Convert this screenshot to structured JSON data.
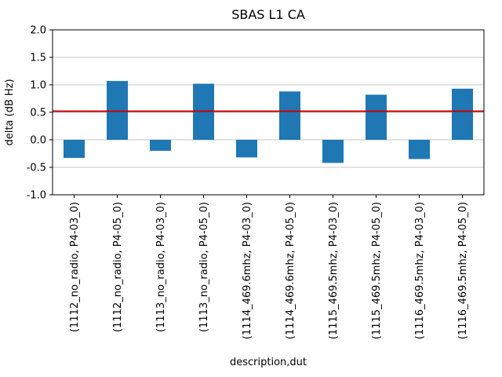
{
  "chart_data": {
    "type": "bar",
    "title": "SBAS L1 CA",
    "xlabel": "description,dut",
    "ylabel": "delta (dB Hz)",
    "categories": [
      "(1112_no_radio, P4-03_0)",
      "(1112_no_radio, P4-05_0)",
      "(1113_no_radio, P4-03_0)",
      "(1113_no_radio, P4-05_0)",
      "(1114_469.6mhz, P4-03_0)",
      "(1114_469.6mhz, P4-05_0)",
      "(1115_469.5mhz, P4-03_0)",
      "(1115_469.5mhz, P4-05_0)",
      "(1116_469.5mhz, P4-03_0)",
      "(1116_469.5mhz, P4-05_0)"
    ],
    "values": [
      -0.33,
      1.07,
      -0.2,
      1.02,
      -0.32,
      0.88,
      -0.42,
      0.82,
      -0.35,
      0.93
    ],
    "ylim": [
      -1.0,
      2.0
    ],
    "yticks": [
      -1.0,
      -0.5,
      0.0,
      0.5,
      1.0,
      1.5,
      2.0
    ],
    "ref_line": {
      "value": 0.52,
      "color": "#cc0000"
    },
    "bar_color": "#1f77b4",
    "grid": true,
    "grid_color": "#b0b0b0",
    "legend": "none"
  }
}
